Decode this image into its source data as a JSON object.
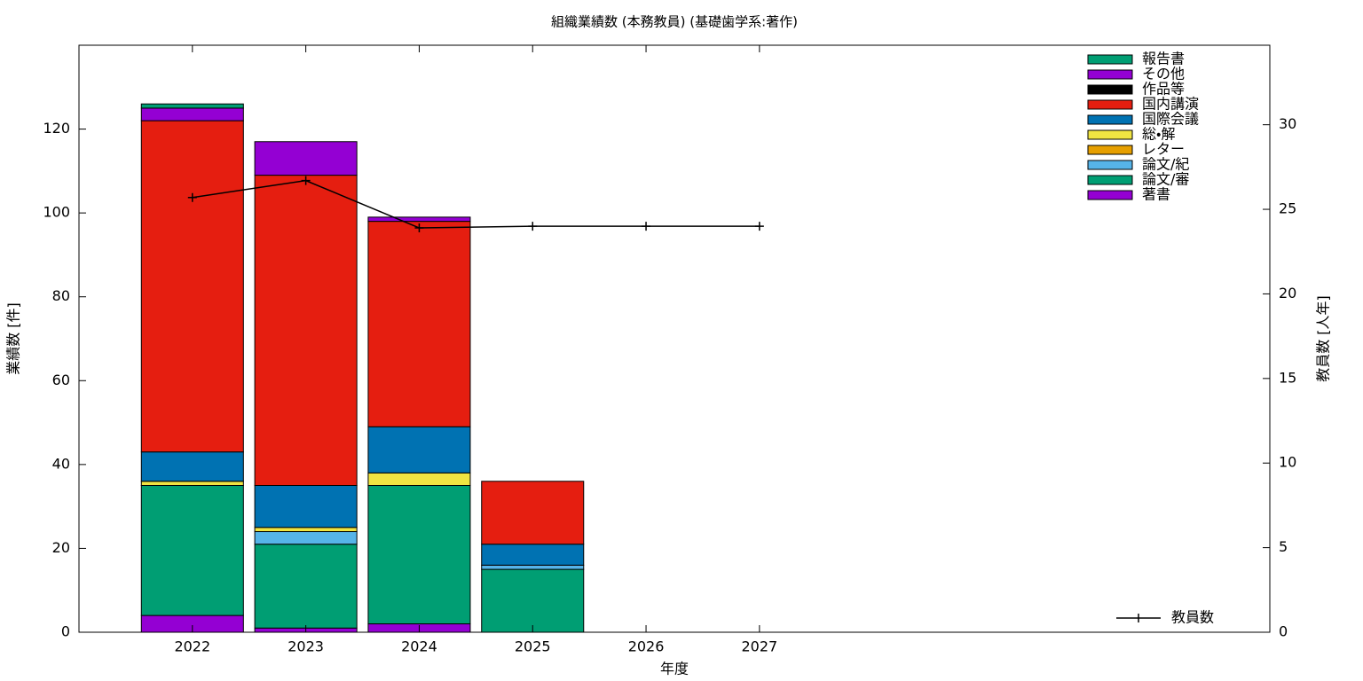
{
  "chart_data": {
    "type": "bar",
    "stacked": true,
    "title": "組織業績数 (本務教員) (基礎歯学系:著作)",
    "xlabel": "年度",
    "ylabel": "業績数 [件]",
    "y2label": "教員数 [人年]",
    "x": [
      2022,
      2023,
      2024,
      2025,
      2026,
      2027
    ],
    "xlim": [
      2021,
      2031.5
    ],
    "xticks": [
      2022,
      2023,
      2024,
      2025,
      2026,
      2027
    ],
    "ylim": [
      0,
      140
    ],
    "yticks": [
      0,
      20,
      40,
      60,
      80,
      100,
      120
    ],
    "y2lim": [
      0,
      34.7
    ],
    "y2ticks": [
      0,
      5,
      10,
      15,
      20,
      25,
      30
    ],
    "series": [
      {
        "name": "著書",
        "color": "#9400d3",
        "values": [
          4,
          1,
          2,
          0,
          0,
          0
        ]
      },
      {
        "name": "論文/審",
        "color": "#009e73",
        "values": [
          31,
          20,
          33,
          15,
          0,
          0
        ]
      },
      {
        "name": "論文/紀",
        "color": "#56b4e9",
        "values": [
          0,
          3,
          0,
          1,
          0,
          0
        ]
      },
      {
        "name": "レター",
        "color": "#e69f00",
        "values": [
          0,
          0,
          0,
          0,
          0,
          0
        ]
      },
      {
        "name": "総・解",
        "color": "#f0e442",
        "values": [
          1,
          1,
          3,
          0,
          0,
          0
        ]
      },
      {
        "name": "国際会議",
        "color": "#0072b2",
        "values": [
          7,
          10,
          11,
          5,
          0,
          0
        ]
      },
      {
        "name": "国内講演",
        "color": "#e51e10",
        "values": [
          79,
          74,
          49,
          15,
          0,
          0
        ]
      },
      {
        "name": "作品等",
        "color": "#000000",
        "values": [
          0,
          0,
          0,
          0,
          0,
          0
        ]
      },
      {
        "name": "その他",
        "color": "#9400d3",
        "values": [
          3,
          8,
          1,
          0,
          0,
          0
        ]
      },
      {
        "name": "報告書",
        "color": "#009e73",
        "values": [
          1,
          0,
          0,
          0,
          0,
          0
        ]
      },
      {
        "name": "教員数",
        "color": "#000000",
        "type": "line",
        "axis": "y2",
        "values": [
          25.7,
          26.7,
          23.9,
          24,
          24,
          24
        ]
      }
    ]
  }
}
